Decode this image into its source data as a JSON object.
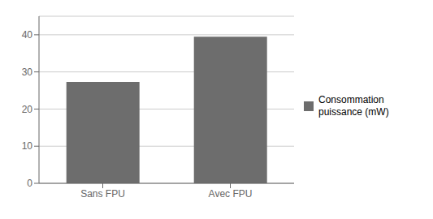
{
  "chart_data": {
    "type": "bar",
    "categories": [
      "Sans FPU",
      "Avec FPU"
    ],
    "series": [
      {
        "name": "Consommation\npuissance (mW)",
        "color": "#6d6d6d",
        "values": [
          27.3,
          39.5
        ]
      }
    ],
    "ylim": [
      0,
      45
    ],
    "yticks": [
      0,
      10,
      20,
      30,
      40
    ],
    "grid": true,
    "legend": "right"
  }
}
